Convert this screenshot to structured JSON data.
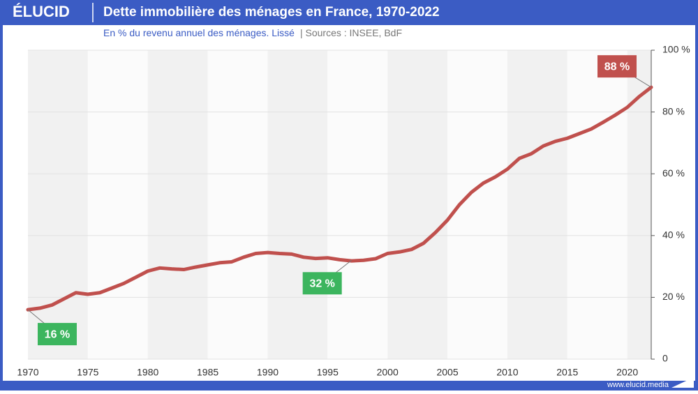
{
  "chart_data": {
    "type": "line",
    "brand": "ÉLUCID",
    "title": "Dette immobilière des ménages en France, 1970-2022",
    "subtitle": "En % du revenu annuel des ménages. Lissé",
    "source": "|  Sources : INSEE, BdF",
    "footer": "www.elucid.media",
    "x": [
      1970,
      1971,
      1972,
      1973,
      1974,
      1975,
      1976,
      1977,
      1978,
      1979,
      1980,
      1981,
      1982,
      1983,
      1984,
      1985,
      1986,
      1987,
      1988,
      1989,
      1990,
      1991,
      1992,
      1993,
      1994,
      1995,
      1996,
      1997,
      1998,
      1999,
      2000,
      2001,
      2002,
      2003,
      2004,
      2005,
      2006,
      2007,
      2008,
      2009,
      2010,
      2011,
      2012,
      2013,
      2014,
      2015,
      2016,
      2017,
      2018,
      2019,
      2020,
      2021,
      2022
    ],
    "series": [
      {
        "name": "Dette immobilière",
        "color": "#c0504d",
        "values": [
          16,
          16.5,
          17.5,
          19.5,
          21.5,
          21,
          21.5,
          23,
          24.5,
          26.5,
          28.5,
          29.5,
          29.2,
          29,
          29.8,
          30.5,
          31.2,
          31.5,
          33,
          34.2,
          34.5,
          34.2,
          34,
          33,
          32.6,
          32.8,
          32.2,
          31.8,
          32,
          32.5,
          34.2,
          34.7,
          35.5,
          37.5,
          41,
          45,
          50,
          54,
          57,
          59,
          61.5,
          65,
          66.5,
          69,
          70.5,
          71.5,
          73,
          74.5,
          76.7,
          79,
          81.5,
          85,
          88
        ]
      }
    ],
    "xlim": [
      1970,
      2022
    ],
    "xticks": [
      1970,
      1975,
      1980,
      1985,
      1990,
      1995,
      2000,
      2005,
      2010,
      2015,
      2020
    ],
    "ylim": [
      0,
      100
    ],
    "yticks": [
      0,
      {
        "value": 20,
        "label": "20 %"
      },
      {
        "value": 40,
        "label": "40 %"
      },
      {
        "value": 60,
        "label": "60 %"
      },
      {
        "value": 80,
        "label": "80 %"
      },
      {
        "value": 100,
        "label": "100 %"
      }
    ],
    "grid": true,
    "annotations": [
      {
        "text": "16 %",
        "x": 1970,
        "y": 16,
        "color": "#3cb55e"
      },
      {
        "text": "32 %",
        "x": 1997,
        "y": 32,
        "color": "#3cb55e"
      },
      {
        "text": "88 %",
        "x": 2022,
        "y": 88,
        "color": "#c0504d"
      }
    ]
  }
}
